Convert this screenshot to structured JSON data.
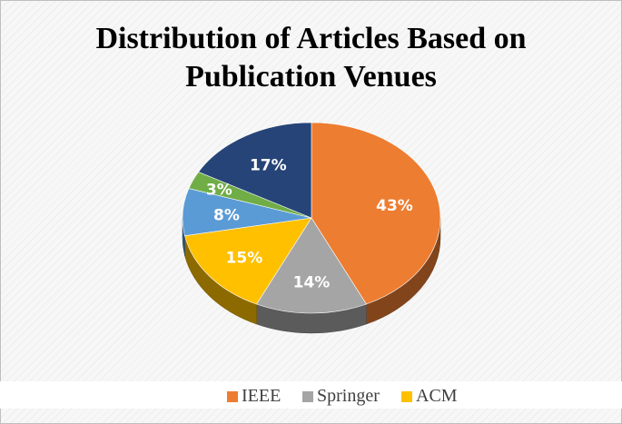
{
  "chart_data": {
    "type": "pie",
    "title_lines": [
      "Distribution of Articles Based on",
      "Publication Venues"
    ],
    "slices": [
      {
        "label": "IEEE",
        "value": 43,
        "data_label": "43%",
        "color": "#ED7D31"
      },
      {
        "label": "Springer",
        "value": 14,
        "data_label": "14%",
        "color": "#A5A5A5"
      },
      {
        "label": "ACM",
        "value": 15,
        "data_label": "15%",
        "color": "#FFC000"
      },
      {
        "label": "",
        "value": 8,
        "data_label": "8%",
        "color": "#5B9BD5"
      },
      {
        "label": "",
        "value": 3,
        "data_label": "3%",
        "color": "#70AD47"
      },
      {
        "label": "",
        "value": 17,
        "data_label": "17%",
        "color": "#264478"
      }
    ],
    "legend": [
      "IEEE",
      "Springer",
      "ACM"
    ],
    "legend_position": "bottom",
    "style": "3d"
  }
}
